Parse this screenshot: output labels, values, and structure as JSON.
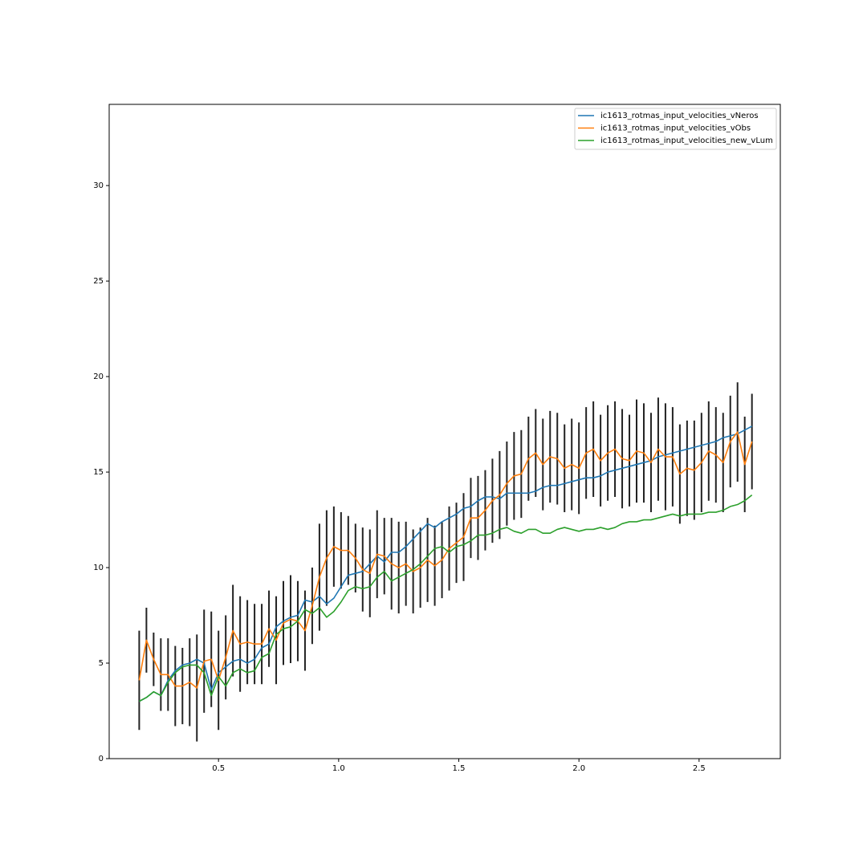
{
  "chart_data": {
    "type": "line",
    "x": [
      0.17,
      0.2,
      0.23,
      0.26,
      0.29,
      0.32,
      0.35,
      0.38,
      0.41,
      0.44,
      0.47,
      0.5,
      0.53,
      0.56,
      0.59,
      0.62,
      0.65,
      0.68,
      0.71,
      0.74,
      0.77,
      0.8,
      0.83,
      0.86,
      0.89,
      0.92,
      0.95,
      0.98,
      1.01,
      1.04,
      1.07,
      1.1,
      1.13,
      1.16,
      1.19,
      1.22,
      1.25,
      1.28,
      1.31,
      1.34,
      1.37,
      1.4,
      1.43,
      1.46,
      1.49,
      1.52,
      1.55,
      1.58,
      1.61,
      1.64,
      1.67,
      1.7,
      1.73,
      1.76,
      1.79,
      1.82,
      1.85,
      1.88,
      1.91,
      1.94,
      1.97,
      2.0,
      2.03,
      2.06,
      2.09,
      2.12,
      2.15,
      2.18,
      2.21,
      2.24,
      2.27,
      2.3,
      2.33,
      2.36,
      2.39,
      2.42,
      2.45,
      2.48,
      2.51,
      2.54,
      2.57,
      2.6,
      2.63,
      2.66,
      2.69,
      2.72
    ],
    "series": [
      {
        "name": "ic1613_rotmas_input_velocities_vNeros",
        "color": "#1f77b4",
        "values": [
          3.0,
          3.2,
          3.5,
          3.3,
          4.1,
          4.6,
          4.9,
          5.0,
          5.2,
          5.0,
          3.6,
          4.5,
          4.8,
          5.1,
          5.2,
          5.0,
          5.2,
          5.8,
          6.0,
          6.9,
          7.2,
          7.4,
          7.5,
          8.3,
          8.2,
          8.5,
          8.1,
          8.4,
          9.0,
          9.6,
          9.7,
          9.8,
          10.2,
          10.6,
          10.3,
          10.8,
          10.8,
          11.1,
          11.5,
          11.9,
          12.3,
          12.1,
          12.4,
          12.6,
          12.8,
          13.1,
          13.2,
          13.5,
          13.7,
          13.7,
          13.6,
          13.9,
          13.9,
          13.9,
          13.9,
          14.0,
          14.2,
          14.3,
          14.3,
          14.4,
          14.5,
          14.6,
          14.7,
          14.7,
          14.8,
          15.0,
          15.1,
          15.2,
          15.3,
          15.4,
          15.5,
          15.6,
          15.8,
          15.9,
          16.0,
          16.1,
          16.2,
          16.3,
          16.4,
          16.5,
          16.6,
          16.8,
          16.9,
          17.0,
          17.2,
          17.4
        ]
      },
      {
        "name": "ic1613_rotmas_input_velocities_vObs",
        "color": "#ff7f0e",
        "values": [
          4.1,
          6.2,
          5.2,
          4.4,
          4.4,
          3.8,
          3.8,
          4.0,
          3.7,
          5.1,
          5.2,
          4.1,
          5.3,
          6.7,
          6.0,
          6.1,
          6.0,
          6.0,
          6.8,
          6.2,
          7.1,
          7.3,
          7.2,
          6.7,
          8.0,
          9.5,
          10.5,
          11.1,
          10.9,
          10.9,
          10.5,
          9.9,
          9.7,
          10.7,
          10.6,
          10.2,
          10.0,
          10.2,
          9.8,
          10.0,
          10.4,
          10.1,
          10.4,
          11.0,
          11.3,
          11.6,
          12.6,
          12.6,
          13.0,
          13.5,
          13.8,
          14.4,
          14.8,
          14.9,
          15.7,
          16.0,
          15.4,
          15.8,
          15.7,
          15.2,
          15.4,
          15.2,
          16.0,
          16.2,
          15.6,
          16.0,
          16.2,
          15.7,
          15.6,
          16.1,
          16.0,
          15.5,
          16.2,
          15.8,
          15.8,
          14.9,
          15.2,
          15.1,
          15.5,
          16.1,
          15.9,
          15.5,
          16.6,
          17.1,
          15.4,
          16.6
        ],
        "errors": [
          2.6,
          1.7,
          1.4,
          1.9,
          1.9,
          2.1,
          2.0,
          2.3,
          2.8,
          2.7,
          2.5,
          2.6,
          2.2,
          2.4,
          2.5,
          2.2,
          2.1,
          2.1,
          2.0,
          2.3,
          2.2,
          2.3,
          2.1,
          2.1,
          2.0,
          2.8,
          2.5,
          2.1,
          2.0,
          1.8,
          1.8,
          2.2,
          2.3,
          2.3,
          2.0,
          2.4,
          2.4,
          2.2,
          2.2,
          2.1,
          2.2,
          2.1,
          2.0,
          2.2,
          2.1,
          2.3,
          2.1,
          2.2,
          2.1,
          2.2,
          2.3,
          2.2,
          2.3,
          2.3,
          2.2,
          2.3,
          2.4,
          2.4,
          2.4,
          2.3,
          2.4,
          2.4,
          2.4,
          2.5,
          2.4,
          2.5,
          2.5,
          2.6,
          2.4,
          2.7,
          2.6,
          2.6,
          2.7,
          2.8,
          2.6,
          2.6,
          2.5,
          2.6,
          2.6,
          2.6,
          2.5,
          2.6,
          2.4,
          2.6,
          2.5,
          2.5
        ]
      },
      {
        "name": "ic1613_rotmas_input_velocities_new_vLum",
        "color": "#2ca02c",
        "values": [
          3.0,
          3.2,
          3.5,
          3.3,
          4.0,
          4.5,
          4.8,
          4.9,
          4.9,
          4.5,
          3.3,
          4.3,
          3.8,
          4.5,
          4.7,
          4.5,
          4.6,
          5.3,
          5.5,
          6.5,
          6.8,
          6.9,
          7.2,
          7.8,
          7.6,
          7.9,
          7.4,
          7.7,
          8.2,
          8.8,
          9.0,
          8.9,
          9.0,
          9.5,
          9.8,
          9.3,
          9.5,
          9.7,
          9.9,
          10.2,
          10.6,
          11.0,
          11.1,
          10.8,
          11.1,
          11.2,
          11.4,
          11.7,
          11.7,
          11.8,
          12.0,
          12.1,
          11.9,
          11.8,
          12.0,
          12.0,
          11.8,
          11.8,
          12.0,
          12.1,
          12.0,
          11.9,
          12.0,
          12.0,
          12.1,
          12.0,
          12.1,
          12.3,
          12.4,
          12.4,
          12.5,
          12.5,
          12.6,
          12.7,
          12.8,
          12.7,
          12.8,
          12.8,
          12.8,
          12.9,
          12.9,
          13.0,
          13.2,
          13.3,
          13.5,
          13.8
        ]
      }
    ],
    "errorbar_color": "#222222",
    "xlim": [
      0.045,
      2.838
    ],
    "ylim": [
      0,
      34.25
    ],
    "xticks": [
      0.5,
      {
        "value": 1,
        "label": "1.0"
      },
      1.5,
      {
        "value": 2,
        "label": "2.0"
      },
      2.5
    ],
    "yticks": [
      0,
      5,
      10,
      15,
      20,
      25,
      30
    ],
    "legend": "upper right"
  }
}
